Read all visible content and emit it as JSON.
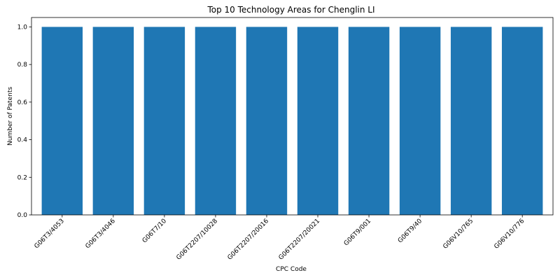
{
  "chart_data": {
    "type": "bar",
    "title": "Top 10 Technology Areas for Chenglin LI",
    "xlabel": "CPC Code",
    "ylabel": "Number of Patents",
    "categories": [
      "G06T3/4053",
      "G06T3/4046",
      "G06T7/10",
      "G06T2207/10028",
      "G06T2207/20016",
      "G06T2207/20021",
      "G06T9/001",
      "G06T9/40",
      "G06V10/765",
      "G06V10/776"
    ],
    "values": [
      1,
      1,
      1,
      1,
      1,
      1,
      1,
      1,
      1,
      1
    ],
    "ylim": [
      0,
      1.05
    ],
    "yticks": [
      "0.0",
      "0.2",
      "0.4",
      "0.6",
      "0.8",
      "1.0"
    ],
    "bar_color": "#1f77b4",
    "grid": false
  }
}
